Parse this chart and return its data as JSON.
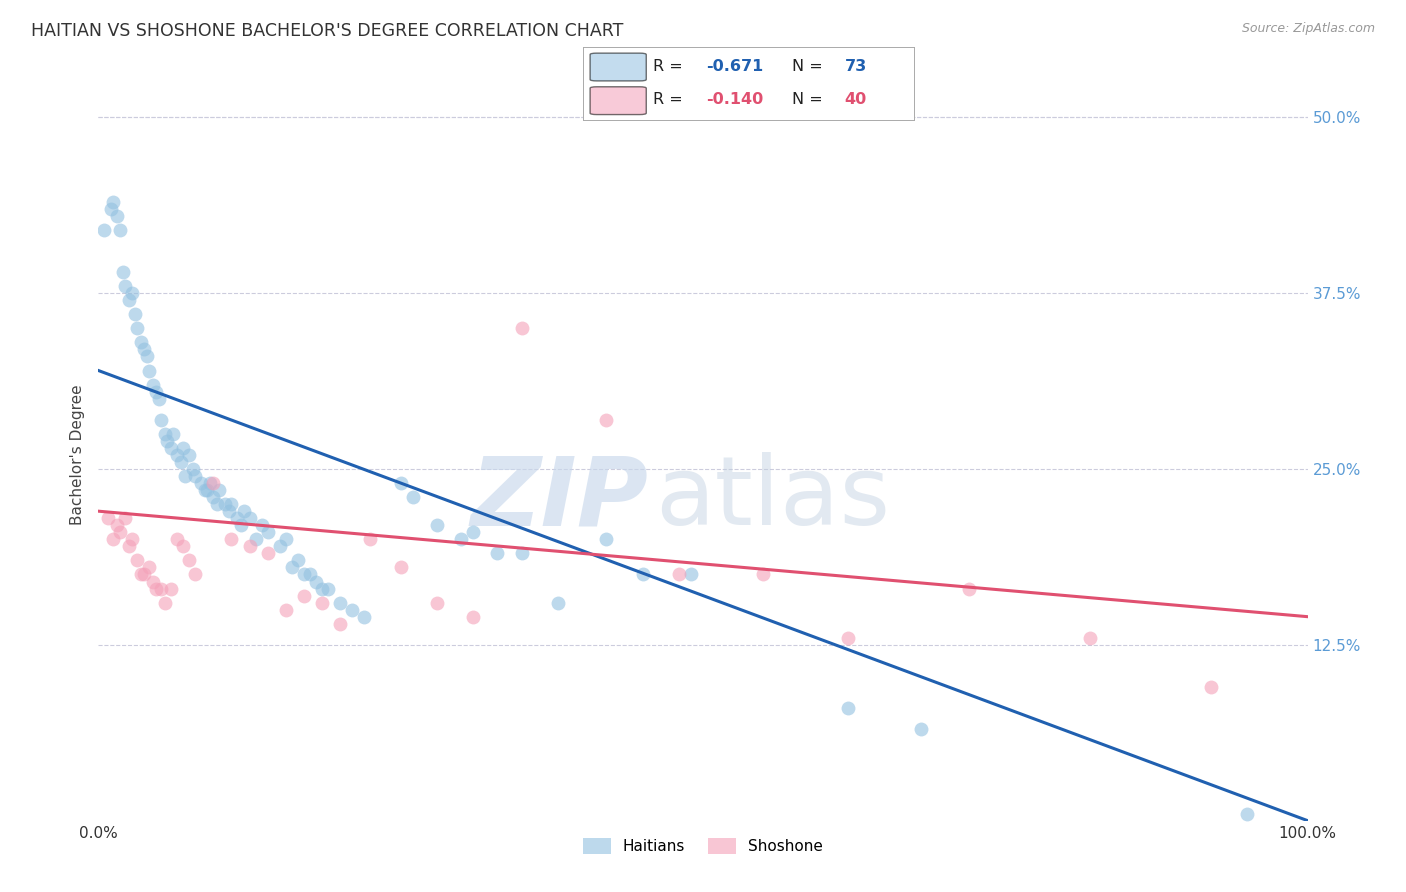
{
  "title": "HAITIAN VS SHOSHONE BACHELOR'S DEGREE CORRELATION CHART",
  "source": "Source: ZipAtlas.com",
  "ylabel": "Bachelor's Degree",
  "blue_R": "-0.671",
  "blue_N": "73",
  "pink_R": "-0.140",
  "pink_N": "40",
  "blue_scatter_x": [
    0.5,
    1.0,
    1.2,
    1.5,
    1.8,
    2.0,
    2.2,
    2.5,
    2.8,
    3.0,
    3.2,
    3.5,
    3.8,
    4.0,
    4.2,
    4.5,
    4.8,
    5.0,
    5.2,
    5.5,
    5.7,
    6.0,
    6.2,
    6.5,
    6.8,
    7.0,
    7.2,
    7.5,
    7.8,
    8.0,
    8.5,
    8.8,
    9.0,
    9.2,
    9.5,
    9.8,
    10.0,
    10.5,
    10.8,
    11.0,
    11.5,
    11.8,
    12.0,
    12.5,
    13.0,
    13.5,
    14.0,
    15.0,
    15.5,
    16.0,
    16.5,
    17.0,
    17.5,
    18.0,
    18.5,
    19.0,
    20.0,
    21.0,
    22.0,
    25.0,
    26.0,
    28.0,
    30.0,
    31.0,
    33.0,
    35.0,
    38.0,
    42.0,
    45.0,
    49.0,
    62.0,
    68.0,
    95.0
  ],
  "blue_scatter_y": [
    42.0,
    43.5,
    44.0,
    43.0,
    42.0,
    39.0,
    38.0,
    37.0,
    37.5,
    36.0,
    35.0,
    34.0,
    33.5,
    33.0,
    32.0,
    31.0,
    30.5,
    30.0,
    28.5,
    27.5,
    27.0,
    26.5,
    27.5,
    26.0,
    25.5,
    26.5,
    24.5,
    26.0,
    25.0,
    24.5,
    24.0,
    23.5,
    23.5,
    24.0,
    23.0,
    22.5,
    23.5,
    22.5,
    22.0,
    22.5,
    21.5,
    21.0,
    22.0,
    21.5,
    20.0,
    21.0,
    20.5,
    19.5,
    20.0,
    18.0,
    18.5,
    17.5,
    17.5,
    17.0,
    16.5,
    16.5,
    15.5,
    15.0,
    14.5,
    24.0,
    23.0,
    21.0,
    20.0,
    20.5,
    19.0,
    19.0,
    15.5,
    20.0,
    17.5,
    17.5,
    8.0,
    6.5,
    0.5
  ],
  "pink_scatter_x": [
    0.8,
    1.2,
    1.5,
    1.8,
    2.2,
    2.5,
    2.8,
    3.2,
    3.5,
    3.8,
    4.2,
    4.5,
    4.8,
    5.2,
    5.5,
    6.0,
    6.5,
    7.0,
    7.5,
    8.0,
    9.5,
    11.0,
    12.5,
    14.0,
    15.5,
    17.0,
    18.5,
    20.0,
    22.5,
    25.0,
    28.0,
    31.0,
    35.0,
    42.0,
    48.0,
    55.0,
    62.0,
    72.0,
    82.0,
    92.0
  ],
  "pink_scatter_y": [
    21.5,
    20.0,
    21.0,
    20.5,
    21.5,
    19.5,
    20.0,
    18.5,
    17.5,
    17.5,
    18.0,
    17.0,
    16.5,
    16.5,
    15.5,
    16.5,
    20.0,
    19.5,
    18.5,
    17.5,
    24.0,
    20.0,
    19.5,
    19.0,
    15.0,
    16.0,
    15.5,
    14.0,
    20.0,
    18.0,
    15.5,
    14.5,
    35.0,
    28.5,
    17.5,
    17.5,
    13.0,
    16.5,
    13.0,
    9.5
  ],
  "blue_line_x": [
    0.0,
    100.0
  ],
  "blue_line_y": [
    32.0,
    0.0
  ],
  "pink_line_x": [
    0.0,
    100.0
  ],
  "pink_line_y": [
    22.0,
    14.5
  ],
  "xlim": [
    0.0,
    100.0
  ],
  "ylim": [
    0.0,
    52.0
  ],
  "yticks": [
    12.5,
    25.0,
    37.5,
    50.0
  ],
  "xticks": [
    0.0,
    100.0
  ],
  "bg_color": "#ffffff",
  "blue_color": "#92c0e0",
  "pink_color": "#f4a0b8",
  "blue_line_color": "#2060b0",
  "pink_line_color": "#e05070",
  "grid_color": "#ccccdd",
  "title_color": "#333333",
  "right_tick_color": "#5b9bd5"
}
